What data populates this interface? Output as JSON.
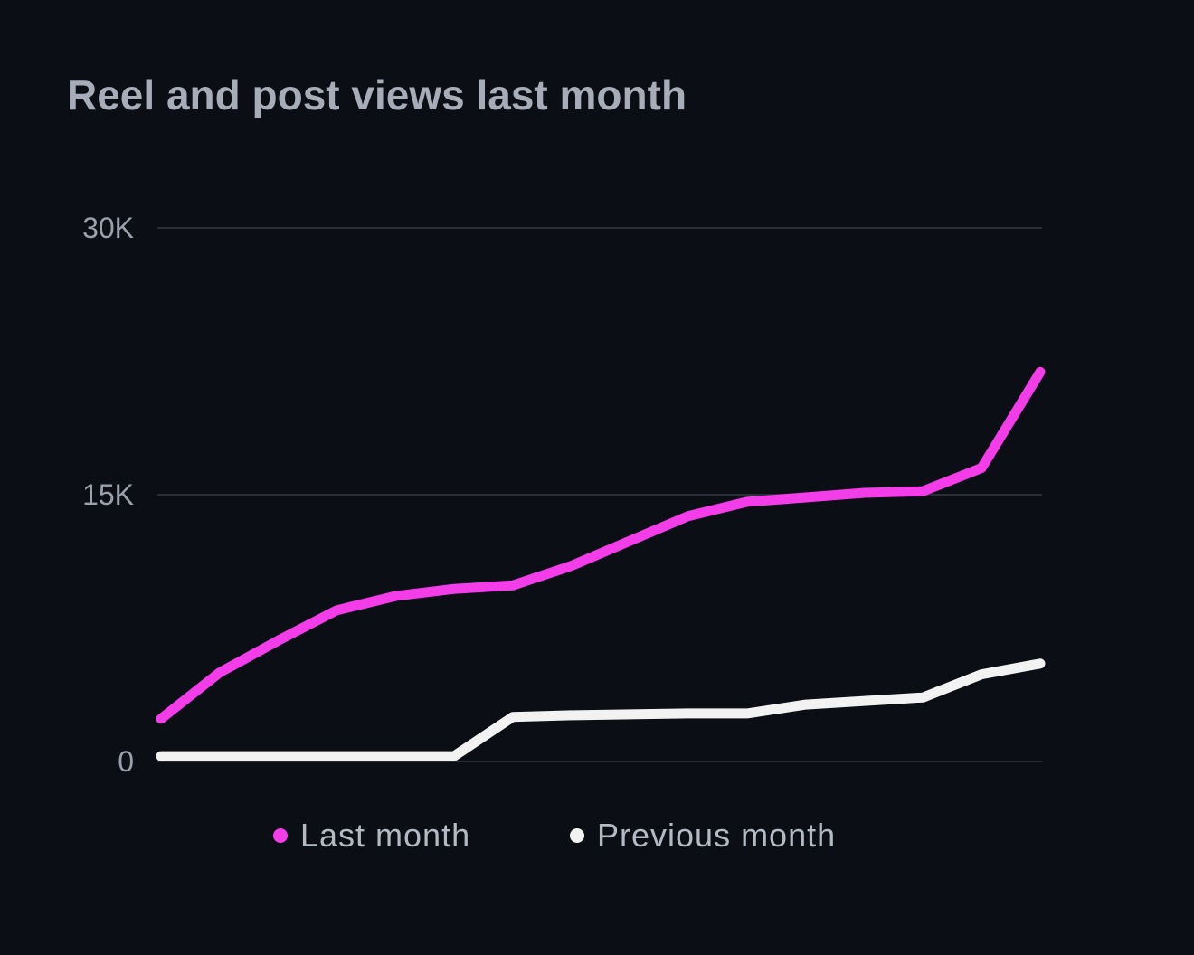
{
  "chart_data": {
    "type": "line",
    "title": "Reel and post views last month",
    "xlabel": "",
    "ylabel": "",
    "ylim": [
      0,
      30000
    ],
    "yticks": [
      {
        "value": 0,
        "label": "0"
      },
      {
        "value": 15000,
        "label": "15K"
      },
      {
        "value": 30000,
        "label": "30K"
      }
    ],
    "grid": true,
    "legend_position": "bottom",
    "x": [
      1,
      2,
      3,
      4,
      5,
      6,
      7,
      8,
      9,
      10,
      11,
      12,
      13,
      14,
      15,
      16
    ],
    "series": [
      {
        "name": "Last month",
        "color": "#f23de8",
        "values": [
          2400,
          5000,
          6800,
          8500,
          9300,
          9700,
          9900,
          11000,
          12400,
          13800,
          14600,
          14850,
          15100,
          15200,
          16500,
          21900
        ]
      },
      {
        "name": "Previous month",
        "color": "#f2f2f2",
        "values": [
          300,
          300,
          300,
          300,
          300,
          300,
          2500,
          2600,
          2650,
          2700,
          2700,
          3200,
          3400,
          3600,
          4900,
          5500
        ]
      }
    ]
  }
}
